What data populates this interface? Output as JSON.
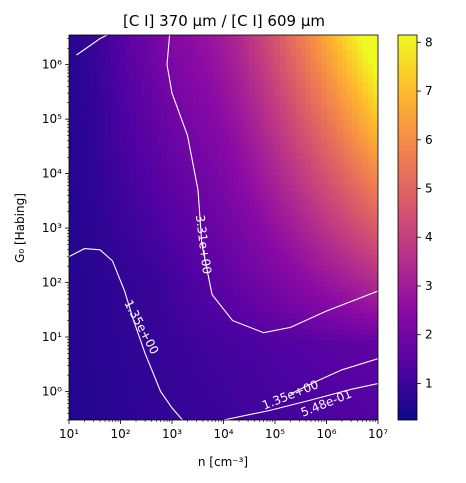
{
  "chart_data": {
    "type": "heatmap",
    "title": "[C I] 370 μm / [C I] 609 μm",
    "xlabel": "n [cm⁻³]",
    "ylabel": "G₀ [Habing]",
    "x_scale": "log",
    "y_scale": "log",
    "xlim": [
      10,
      10000000
    ],
    "ylim": [
      0.3,
      3500000
    ],
    "x_ticks": [
      {
        "value": 10,
        "label": "10¹"
      },
      {
        "value": 100,
        "label": "10²"
      },
      {
        "value": 1000,
        "label": "10³"
      },
      {
        "value": 10000,
        "label": "10⁴"
      },
      {
        "value": 100000,
        "label": "10⁵"
      },
      {
        "value": 1000000,
        "label": "10⁶"
      },
      {
        "value": 10000000,
        "label": "10⁷"
      }
    ],
    "y_ticks": [
      {
        "value": 1,
        "label": "10⁰"
      },
      {
        "value": 10,
        "label": "10¹"
      },
      {
        "value": 100,
        "label": "10²"
      },
      {
        "value": 1000,
        "label": "10³"
      },
      {
        "value": 10000,
        "label": "10⁴"
      },
      {
        "value": 100000,
        "label": "10⁵"
      },
      {
        "value": 1000000,
        "label": "10⁶"
      }
    ],
    "colormap": "plasma",
    "colorbar": {
      "min": 0.25,
      "max": 8.15,
      "ticks": [
        1,
        2,
        3,
        4,
        5,
        6,
        7,
        8
      ],
      "tick_labels": [
        "1",
        "2",
        "3",
        "4",
        "5",
        "6",
        "7",
        "8"
      ]
    },
    "value_range": [
      0.25,
      8.15
    ],
    "contours": [
      {
        "label": "3.31e+00",
        "value": 3.31,
        "label_at": {
          "x": 4000,
          "y": 500
        },
        "paths": [
          [
            [
              14,
              1500000
            ],
            [
              25,
              2200000
            ],
            [
              40,
              3000000
            ],
            [
              55,
              3500000
            ]
          ],
          [
            [
              900,
              3500000
            ],
            [
              800,
              1000000
            ],
            [
              1000,
              300000
            ],
            [
              2000,
              50000
            ],
            [
              3200,
              5000
            ],
            [
              3800,
              500
            ],
            [
              6000,
              60
            ],
            [
              15000,
              20
            ],
            [
              60000,
              12
            ],
            [
              200000,
              15
            ],
            [
              1000000,
              30
            ],
            [
              10000000,
              70
            ]
          ]
        ]
      },
      {
        "label": "1.35e+00",
        "value": 1.35,
        "label_at": {
          "x": 250,
          "y": 15
        },
        "paths": [
          [
            [
              10,
              300
            ],
            [
              20,
              420
            ],
            [
              40,
              400
            ],
            [
              70,
              250
            ],
            [
              120,
              70
            ],
            [
              180,
              20
            ],
            [
              300,
              5
            ],
            [
              600,
              1
            ],
            [
              1000,
              0.5
            ],
            [
              1600,
              0.3
            ]
          ],
          [
            [
              200000,
              0.9
            ],
            [
              600000,
              1.5
            ],
            [
              2000000,
              2.5
            ],
            [
              10000000,
              4
            ]
          ]
        ]
      },
      {
        "label": "1.35e+00",
        "value": 1.35,
        "label_at": {
          "x": 200000,
          "y": 0.85
        },
        "paths": []
      },
      {
        "label": "5.48e-01",
        "value": 0.548,
        "label_at": {
          "x": 1000000,
          "y": 0.6
        },
        "paths": [
          [
            [
              10000,
              0.3
            ],
            [
              80000,
              0.45
            ],
            [
              500000,
              0.7
            ],
            [
              3000000,
              1.1
            ],
            [
              10000000,
              1.4
            ]
          ]
        ]
      }
    ]
  }
}
